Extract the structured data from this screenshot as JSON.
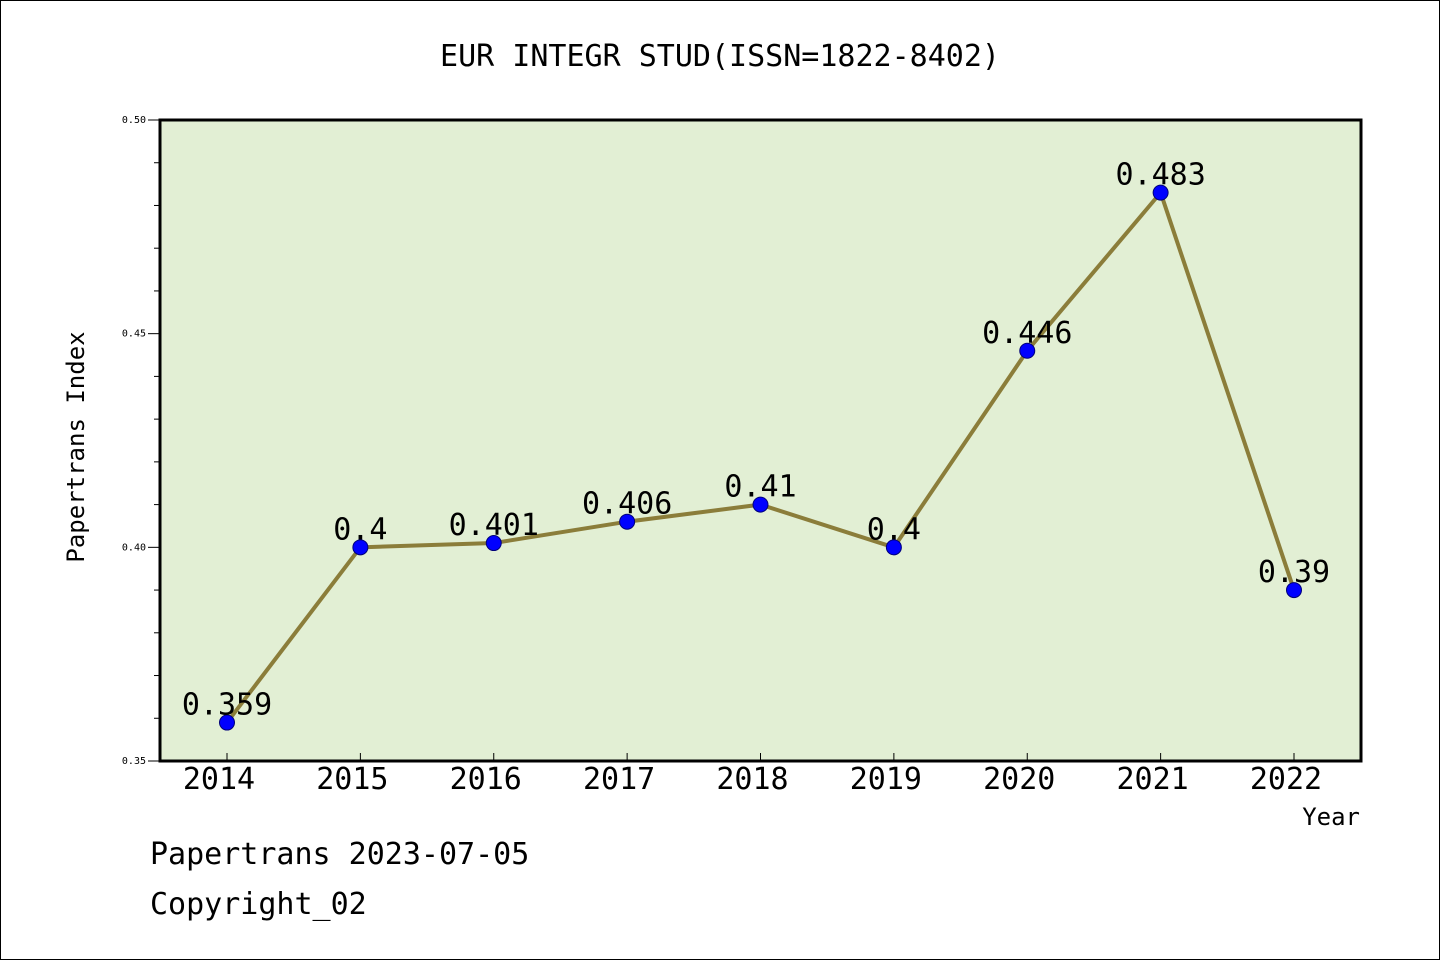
{
  "chart_data": {
    "type": "line",
    "title": "EUR INTEGR STUD(ISSN=1822-8402)",
    "xlabel": "Year",
    "ylabel": "Papertrans Index",
    "x": [
      "2014",
      "2015",
      "2016",
      "2017",
      "2018",
      "2019",
      "2020",
      "2021",
      "2022"
    ],
    "series": [
      {
        "values": [
          0.359,
          0.4,
          0.401,
          0.406,
          0.41,
          0.4,
          0.446,
          0.483,
          0.39
        ],
        "labels": [
          "0.359",
          "0.4",
          "0.401",
          "0.406",
          "0.41",
          "0.4",
          "0.446",
          "0.483",
          "0.39"
        ]
      }
    ],
    "ylim": [
      0.35,
      0.5
    ],
    "yticks": [
      "0.35",
      "0.40",
      "0.45",
      "0.50"
    ],
    "grid": false,
    "colors": {
      "plot_background": "#e2efd4",
      "line": "#8b7d3a",
      "marker": "#0000ff"
    }
  },
  "footer": {
    "line1": "Papertrans 2023-07-05",
    "line2": "Copyright_02"
  }
}
